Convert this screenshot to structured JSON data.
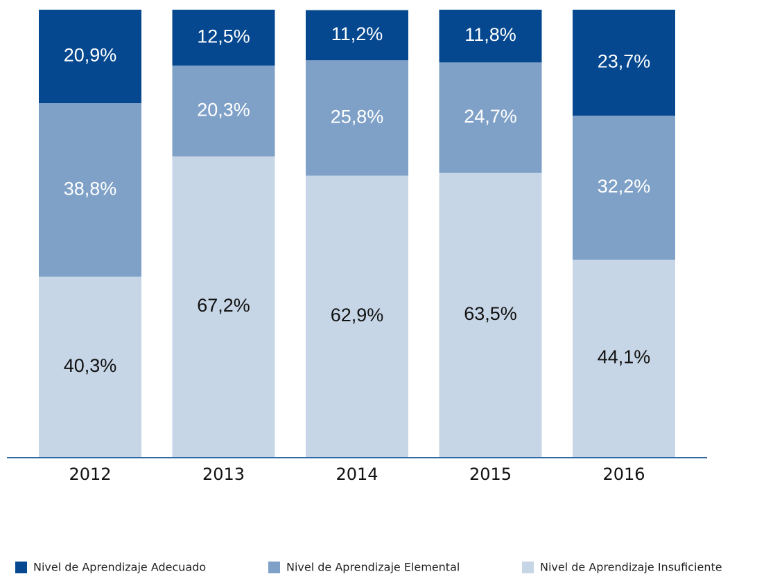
{
  "chart_data": {
    "type": "stacked_bar",
    "categories": [
      "2012",
      "2013",
      "2014",
      "2015",
      "2016"
    ],
    "series": [
      {
        "name": "Nivel de Aprendizaje Adecuado",
        "color": "#05488f",
        "values": [
          20.9,
          12.5,
          11.2,
          11.8,
          23.7
        ],
        "value_labels": [
          "20,9%",
          "12,5%",
          "11,2%",
          "11,8%",
          "23,7%"
        ]
      },
      {
        "name": "Nivel de Aprendizaje Elemental",
        "color": "#7fa1c8",
        "values": [
          38.8,
          20.3,
          25.8,
          24.7,
          32.2
        ],
        "value_labels": [
          "38,8%",
          "20,3%",
          "25,8%",
          "24,7%",
          "32,2%"
        ]
      },
      {
        "name": "Nivel de Aprendizaje Insuficiente",
        "color": "#c7d6e6",
        "values": [
          40.3,
          67.2,
          62.9,
          63.5,
          44.1
        ],
        "value_labels": [
          "40,3%",
          "67,2%",
          "62,9%",
          "63,5%",
          "44,1%"
        ]
      }
    ],
    "ylim": [
      0,
      100
    ],
    "legend": "bottom"
  }
}
